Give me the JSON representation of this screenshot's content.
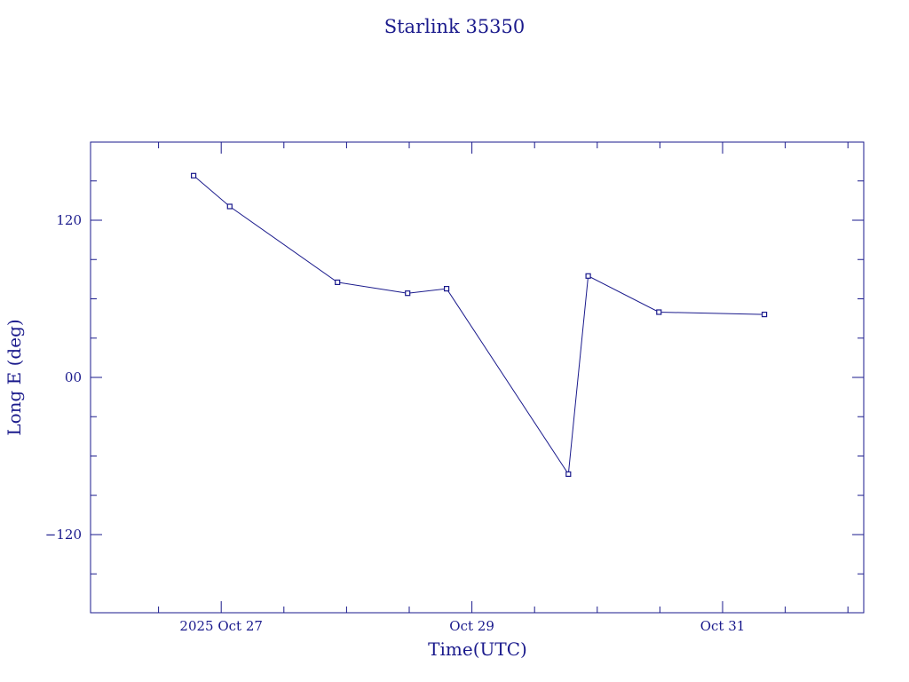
{
  "chart_data": {
    "type": "line",
    "title": "Starlink 35350",
    "xlabel": "Time(UTC)",
    "ylabel": "Long E (deg)",
    "x_unit": "days",
    "xlim": [
      "2025-10-26T00:00",
      "2025-11-01T00:00"
    ],
    "ylim": [
      -180,
      180
    ],
    "x_ticks": [
      {
        "x": "2025-10-27T00:00",
        "label": "2025 Oct 27"
      },
      {
        "x": "2025-10-29T00:00",
        "label": "Oct 29"
      },
      {
        "x": "2025-10-31T00:00",
        "label": "Oct 31"
      }
    ],
    "x_minor_ticks": [
      "2025-10-26T12:00",
      "2025-10-27T12:00",
      "2025-10-28T00:00",
      "2025-10-28T12:00",
      "2025-10-29T12:00",
      "2025-10-30T00:00",
      "2025-10-30T12:00",
      "2025-10-31T12:00",
      "2025-11-01T00:00"
    ],
    "y_ticks": [
      {
        "y": 120,
        "label": "120"
      },
      {
        "y": 0,
        "label": "00"
      },
      {
        "y": -120,
        "label": "−120"
      }
    ],
    "y_minor_ticks": [
      150,
      90,
      60,
      30,
      -30,
      -60,
      -90,
      -150
    ],
    "grid": false,
    "series": [
      {
        "points": [
          {
            "x": "2025-10-26T18:43",
            "y": 154
          },
          {
            "x": "2025-10-27T01:38",
            "y": 130.5
          },
          {
            "x": "2025-10-27T22:16",
            "y": 72.6
          },
          {
            "x": "2025-10-28T11:42",
            "y": 64.3
          },
          {
            "x": "2025-10-28T19:09",
            "y": 67.7
          },
          {
            "x": "2025-10-29T18:29",
            "y": -73.8
          },
          {
            "x": "2025-10-29T22:16",
            "y": 77.4
          },
          {
            "x": "2025-10-30T11:49",
            "y": 49.8
          },
          {
            "x": "2025-10-31T08:00",
            "y": 48.1
          }
        ]
      }
    ]
  }
}
